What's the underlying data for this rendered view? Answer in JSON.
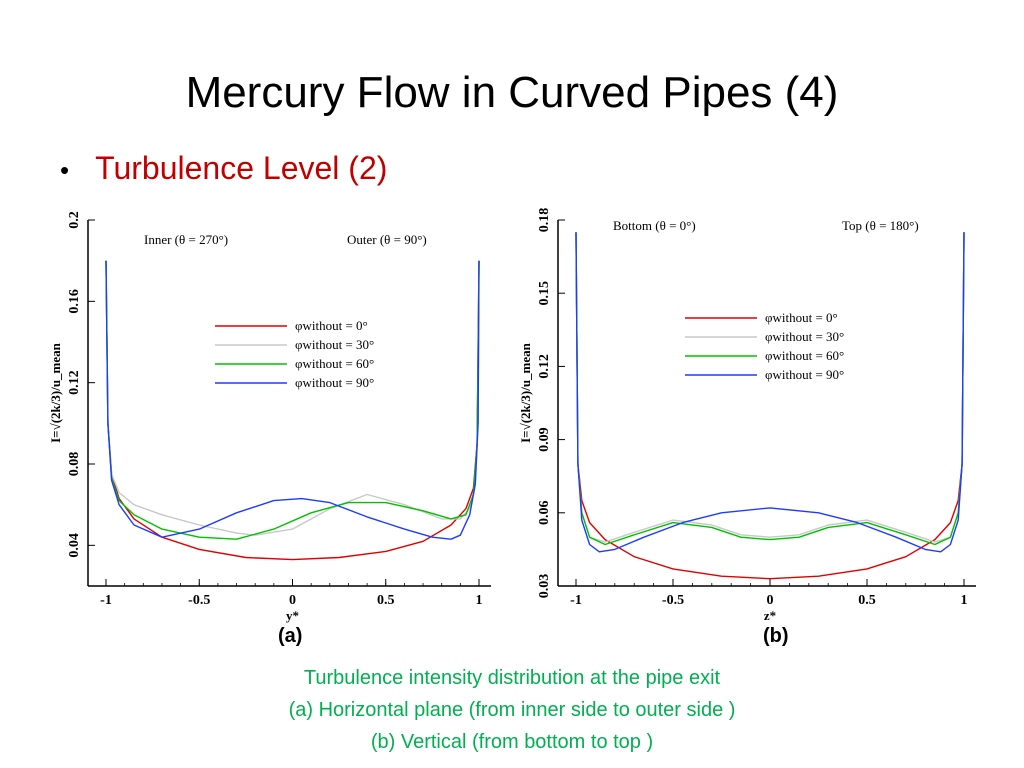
{
  "slide": {
    "title": "Mercury Flow in Curved Pipes (4)",
    "bullet": "Turbulence Level (2)"
  },
  "panel_labels": [
    "(a)",
    "(b)"
  ],
  "caption": {
    "line1": "Turbulence intensity distribution at the pipe exit",
    "line2": "(a)  Horizontal plane (from inner side to outer side )",
    "line3": "(b)  Vertical  (from bottom to top )"
  },
  "colors": {
    "series": [
      "#e00000",
      "#c8c8c8",
      "#00c000",
      "#1e3cff"
    ],
    "title": "#000000",
    "bullet": "#c00000",
    "caption": "#00b050"
  },
  "chart_data": [
    {
      "type": "line",
      "xlabel": "y*",
      "ylabel": "I=√(2k/3)/u_mean",
      "xlim": [
        -1,
        1
      ],
      "ylim": [
        0.02,
        0.2
      ],
      "xticks": [
        -1,
        -0.5,
        0,
        0.5,
        1
      ],
      "xtick_labels": [
        "-1",
        "-0.5",
        "0",
        "0.5",
        "1"
      ],
      "yticks": [
        0.04,
        0.08,
        0.12,
        0.16,
        0.2
      ],
      "ytick_labels": [
        "0.04",
        "0.08",
        "0.12",
        "0.16",
        "0.2"
      ],
      "annotations": [
        "Inner (θ = 270°)",
        "Outer (θ = 90°)"
      ],
      "legend_position": "center",
      "series": [
        {
          "name": "φwithout = 0°",
          "x": [
            -1,
            -0.99,
            -0.97,
            -0.93,
            -0.85,
            -0.7,
            -0.5,
            -0.25,
            0,
            0.25,
            0.5,
            0.7,
            0.85,
            0.93,
            0.97,
            0.99,
            1
          ],
          "y": [
            0.18,
            0.1,
            0.075,
            0.063,
            0.053,
            0.044,
            0.038,
            0.034,
            0.033,
            0.034,
            0.037,
            0.042,
            0.05,
            0.058,
            0.068,
            0.09,
            0.18
          ]
        },
        {
          "name": "φwithout = 30°",
          "x": [
            -1,
            -0.99,
            -0.97,
            -0.93,
            -0.85,
            -0.7,
            -0.5,
            -0.3,
            -0.2,
            0,
            0.2,
            0.4,
            0.6,
            0.8,
            0.9,
            0.95,
            0.98,
            0.995,
            1
          ],
          "y": [
            0.18,
            0.1,
            0.075,
            0.066,
            0.06,
            0.055,
            0.05,
            0.046,
            0.045,
            0.048,
            0.058,
            0.065,
            0.06,
            0.053,
            0.053,
            0.058,
            0.07,
            0.1,
            0.18
          ]
        },
        {
          "name": "φwithout = 60°",
          "x": [
            -1,
            -0.99,
            -0.97,
            -0.93,
            -0.85,
            -0.7,
            -0.5,
            -0.3,
            -0.1,
            0.1,
            0.3,
            0.5,
            0.7,
            0.85,
            0.93,
            0.97,
            0.99,
            1
          ],
          "y": [
            0.18,
            0.1,
            0.073,
            0.062,
            0.055,
            0.048,
            0.044,
            0.043,
            0.048,
            0.056,
            0.061,
            0.061,
            0.057,
            0.053,
            0.055,
            0.065,
            0.09,
            0.18
          ]
        },
        {
          "name": "φwithout = 90°",
          "x": [
            -1,
            -0.99,
            -0.97,
            -0.93,
            -0.85,
            -0.7,
            -0.5,
            -0.3,
            -0.1,
            0.05,
            0.2,
            0.4,
            0.6,
            0.75,
            0.85,
            0.9,
            0.95,
            0.98,
            0.995,
            1
          ],
          "y": [
            0.18,
            0.1,
            0.072,
            0.06,
            0.05,
            0.044,
            0.048,
            0.056,
            0.062,
            0.063,
            0.061,
            0.054,
            0.048,
            0.044,
            0.043,
            0.045,
            0.055,
            0.07,
            0.1,
            0.18
          ]
        }
      ]
    },
    {
      "type": "line",
      "xlabel": "z*",
      "ylabel": "I=√(2k/3)/u_mean",
      "xlim": [
        -1,
        1
      ],
      "ylim": [
        0.03,
        0.18
      ],
      "xticks": [
        -1,
        -0.5,
        0,
        0.5,
        1
      ],
      "xtick_labels": [
        "-1",
        "-0.5",
        "0",
        "0.5",
        "1"
      ],
      "yticks": [
        0.03,
        0.06,
        0.09,
        0.12,
        0.15,
        0.18
      ],
      "ytick_labels": [
        "0.03",
        "0.06",
        "0.09",
        "0.12",
        "0.15",
        "0.18"
      ],
      "annotations": [
        "Bottom (θ = 0°)",
        "Top (θ = 180°)"
      ],
      "legend_position": "center",
      "series": [
        {
          "name": "φwithout = 0°",
          "x": [
            -1,
            -0.99,
            -0.97,
            -0.93,
            -0.85,
            -0.7,
            -0.5,
            -0.25,
            0,
            0.25,
            0.5,
            0.7,
            0.85,
            0.93,
            0.97,
            0.99,
            1
          ],
          "y": [
            0.175,
            0.08,
            0.065,
            0.056,
            0.049,
            0.042,
            0.037,
            0.034,
            0.033,
            0.034,
            0.037,
            0.042,
            0.049,
            0.056,
            0.065,
            0.08,
            0.175
          ]
        },
        {
          "name": "φwithout = 30°",
          "x": [
            -1,
            -0.99,
            -0.97,
            -0.93,
            -0.85,
            -0.7,
            -0.5,
            -0.3,
            -0.15,
            0,
            0.15,
            0.3,
            0.5,
            0.7,
            0.85,
            0.93,
            0.97,
            0.99,
            1
          ],
          "y": [
            0.175,
            0.08,
            0.06,
            0.05,
            0.048,
            0.052,
            0.057,
            0.055,
            0.051,
            0.05,
            0.051,
            0.055,
            0.057,
            0.052,
            0.048,
            0.05,
            0.06,
            0.08,
            0.175
          ]
        },
        {
          "name": "φwithout = 60°",
          "x": [
            -1,
            -0.99,
            -0.97,
            -0.93,
            -0.85,
            -0.7,
            -0.5,
            -0.3,
            -0.15,
            0,
            0.15,
            0.3,
            0.5,
            0.7,
            0.85,
            0.93,
            0.97,
            0.99,
            1
          ],
          "y": [
            0.175,
            0.08,
            0.06,
            0.05,
            0.047,
            0.051,
            0.056,
            0.054,
            0.05,
            0.049,
            0.05,
            0.054,
            0.056,
            0.051,
            0.047,
            0.05,
            0.06,
            0.08,
            0.175
          ]
        },
        {
          "name": "φwithout = 90°",
          "x": [
            -1,
            -0.99,
            -0.97,
            -0.93,
            -0.88,
            -0.8,
            -0.65,
            -0.45,
            -0.25,
            0,
            0.25,
            0.45,
            0.65,
            0.8,
            0.88,
            0.93,
            0.97,
            0.99,
            1
          ],
          "y": [
            0.175,
            0.08,
            0.057,
            0.047,
            0.044,
            0.045,
            0.05,
            0.056,
            0.06,
            0.062,
            0.06,
            0.056,
            0.05,
            0.045,
            0.044,
            0.047,
            0.057,
            0.08,
            0.175
          ]
        }
      ]
    }
  ]
}
